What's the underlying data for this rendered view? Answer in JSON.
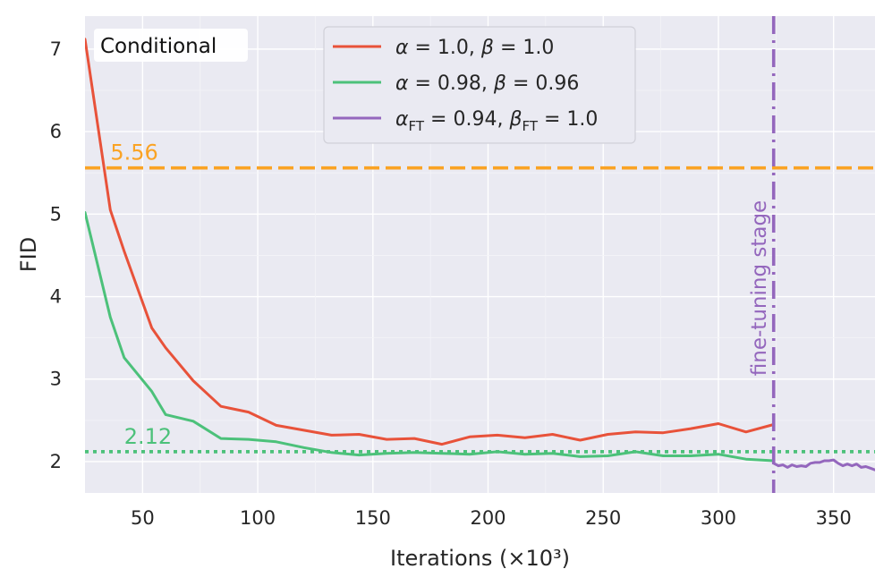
{
  "chart_data": {
    "type": "line",
    "title": "",
    "panel_label": "Conditional",
    "xlabel": "Iterations (×10³)",
    "ylabel": "FID",
    "xlim": [
      25,
      368
    ],
    "ylim": [
      1.62,
      7.4
    ],
    "xticks": [
      50,
      100,
      150,
      200,
      250,
      300,
      350
    ],
    "yticks": [
      2,
      3,
      4,
      5,
      6,
      7
    ],
    "grid": true,
    "legend_position": "top-center",
    "series": [
      {
        "name": "α = 1.0, β = 1.0",
        "legend": {
          "a": "α",
          "a_sub": "",
          "a_val": " = 1.0, ",
          "b": "β",
          "b_sub": "",
          "b_val": " = 1.0"
        },
        "color": "#e8523a",
        "x": [
          25,
          36,
          42,
          54,
          60,
          72,
          84,
          96,
          108,
          120,
          132,
          144,
          156,
          168,
          180,
          192,
          204,
          216,
          228,
          240,
          252,
          264,
          276,
          288,
          300,
          312,
          324
        ],
        "y": [
          7.12,
          5.05,
          4.55,
          3.62,
          3.38,
          2.98,
          2.67,
          2.6,
          2.44,
          2.38,
          2.32,
          2.33,
          2.27,
          2.28,
          2.21,
          2.3,
          2.32,
          2.29,
          2.33,
          2.26,
          2.33,
          2.36,
          2.35,
          2.4,
          2.46,
          2.36,
          2.45
        ]
      },
      {
        "name": "α = 0.98, β = 0.96",
        "legend": {
          "a": "α",
          "a_sub": "",
          "a_val": " = 0.98, ",
          "b": "β",
          "b_sub": "",
          "b_val": " = 0.96"
        },
        "color": "#4cc17a",
        "x": [
          25,
          36,
          42,
          54,
          60,
          72,
          84,
          96,
          108,
          120,
          132,
          144,
          156,
          168,
          180,
          192,
          204,
          216,
          228,
          240,
          252,
          264,
          276,
          288,
          300,
          312,
          324
        ],
        "y": [
          5.02,
          3.75,
          3.26,
          2.85,
          2.57,
          2.49,
          2.28,
          2.27,
          2.24,
          2.17,
          2.11,
          2.08,
          2.1,
          2.11,
          2.1,
          2.09,
          2.12,
          2.09,
          2.1,
          2.06,
          2.07,
          2.12,
          2.07,
          2.07,
          2.09,
          2.03,
          2.01
        ]
      },
      {
        "name": "αFT = 0.94, βFT = 1.0",
        "legend": {
          "a": "α",
          "a_sub": "FT",
          "a_val": " = 0.94, ",
          "b": "β",
          "b_sub": "FT",
          "b_val": " = 1.0"
        },
        "color": "#9467bd",
        "x": [
          324,
          326,
          328,
          330,
          332,
          334,
          336,
          338,
          340,
          342,
          344,
          346,
          348,
          350,
          352,
          354,
          356,
          358,
          360,
          362,
          364,
          366,
          368
        ],
        "y": [
          1.98,
          1.95,
          1.96,
          1.93,
          1.96,
          1.94,
          1.95,
          1.94,
          1.98,
          1.99,
          1.99,
          2.01,
          2.01,
          2.02,
          1.98,
          1.95,
          1.97,
          1.95,
          1.97,
          1.93,
          1.94,
          1.92,
          1.9
        ]
      }
    ],
    "reference_lines": [
      {
        "orientation": "horizontal",
        "value": 5.56,
        "label": "5.56",
        "label_x": 36,
        "style": "dashed",
        "color": "#faa324"
      },
      {
        "orientation": "horizontal",
        "value": 2.12,
        "label": "2.12",
        "label_x": 42,
        "style": "dotted",
        "color": "#4cc17a"
      }
    ],
    "vertical_marker": {
      "value": 324,
      "label": "fine-tuning stage",
      "style": "dashdot",
      "color": "#9467bd"
    }
  }
}
